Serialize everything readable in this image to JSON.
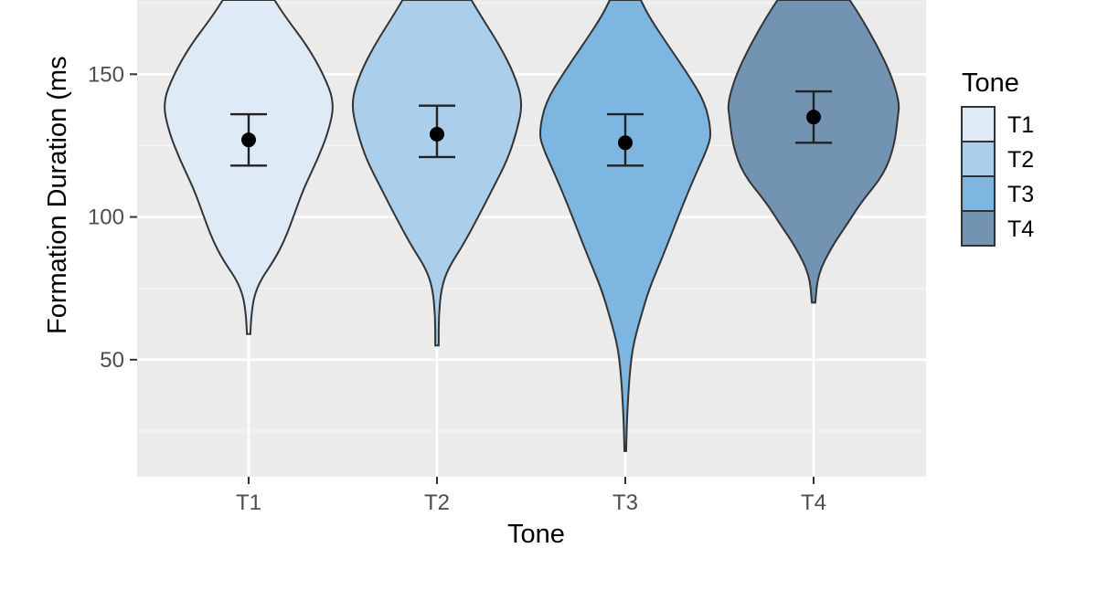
{
  "chart_data": {
    "type": "violin",
    "title": "",
    "xlabel": "Tone",
    "ylabel": "Formation Duration (ms)",
    "ylabel_visible": "Formation Duration (ms",
    "categories": [
      "T1",
      "T2",
      "T3",
      "T4"
    ],
    "ylim": [
      9,
      176
    ],
    "yticks": [
      50,
      100,
      150
    ],
    "grid": true,
    "legend": {
      "title": "Tone",
      "position": "right",
      "entries": [
        "T1",
        "T2",
        "T3",
        "T4"
      ]
    },
    "colors": [
      "#deebf7",
      "#abcfea",
      "#7db6e0",
      "#7393b3"
    ],
    "series": [
      {
        "category": "T1",
        "mean": 127,
        "ci_low": 118,
        "ci_high": 136,
        "min": 59,
        "max": 176,
        "density": [
          [
            59,
            0.02
          ],
          [
            65,
            0.03
          ],
          [
            72,
            0.06
          ],
          [
            78,
            0.14
          ],
          [
            85,
            0.3
          ],
          [
            92,
            0.42
          ],
          [
            100,
            0.52
          ],
          [
            110,
            0.64
          ],
          [
            120,
            0.8
          ],
          [
            130,
            0.93
          ],
          [
            140,
            1.0
          ],
          [
            150,
            0.87
          ],
          [
            160,
            0.68
          ],
          [
            170,
            0.43
          ],
          [
            176,
            0.3
          ]
        ]
      },
      {
        "category": "T2",
        "mean": 129,
        "ci_low": 121,
        "ci_high": 139,
        "min": 55,
        "max": 176,
        "density": [
          [
            55,
            0.02
          ],
          [
            65,
            0.02
          ],
          [
            75,
            0.05
          ],
          [
            82,
            0.13
          ],
          [
            90,
            0.3
          ],
          [
            100,
            0.48
          ],
          [
            110,
            0.65
          ],
          [
            120,
            0.82
          ],
          [
            130,
            0.93
          ],
          [
            140,
            1.0
          ],
          [
            150,
            0.9
          ],
          [
            160,
            0.73
          ],
          [
            170,
            0.52
          ],
          [
            176,
            0.4
          ]
        ]
      },
      {
        "category": "T3",
        "mean": 126,
        "ci_low": 118,
        "ci_high": 136,
        "min": 18,
        "max": 176,
        "density": [
          [
            18,
            0.01
          ],
          [
            30,
            0.02
          ],
          [
            45,
            0.05
          ],
          [
            55,
            0.09
          ],
          [
            65,
            0.18
          ],
          [
            75,
            0.28
          ],
          [
            85,
            0.42
          ],
          [
            95,
            0.55
          ],
          [
            105,
            0.68
          ],
          [
            115,
            0.82
          ],
          [
            125,
            0.97
          ],
          [
            130,
            1.0
          ],
          [
            140,
            0.93
          ],
          [
            150,
            0.73
          ],
          [
            160,
            0.5
          ],
          [
            170,
            0.28
          ],
          [
            176,
            0.18
          ]
        ]
      },
      {
        "category": "T4",
        "mean": 135,
        "ci_low": 126,
        "ci_high": 144,
        "min": 70,
        "max": 176,
        "density": [
          [
            70,
            0.02
          ],
          [
            80,
            0.05
          ],
          [
            90,
            0.22
          ],
          [
            97,
            0.38
          ],
          [
            105,
            0.55
          ],
          [
            115,
            0.82
          ],
          [
            125,
            0.94
          ],
          [
            135,
            0.98
          ],
          [
            140,
            1.0
          ],
          [
            150,
            0.9
          ],
          [
            160,
            0.74
          ],
          [
            170,
            0.55
          ],
          [
            176,
            0.42
          ]
        ]
      }
    ]
  }
}
